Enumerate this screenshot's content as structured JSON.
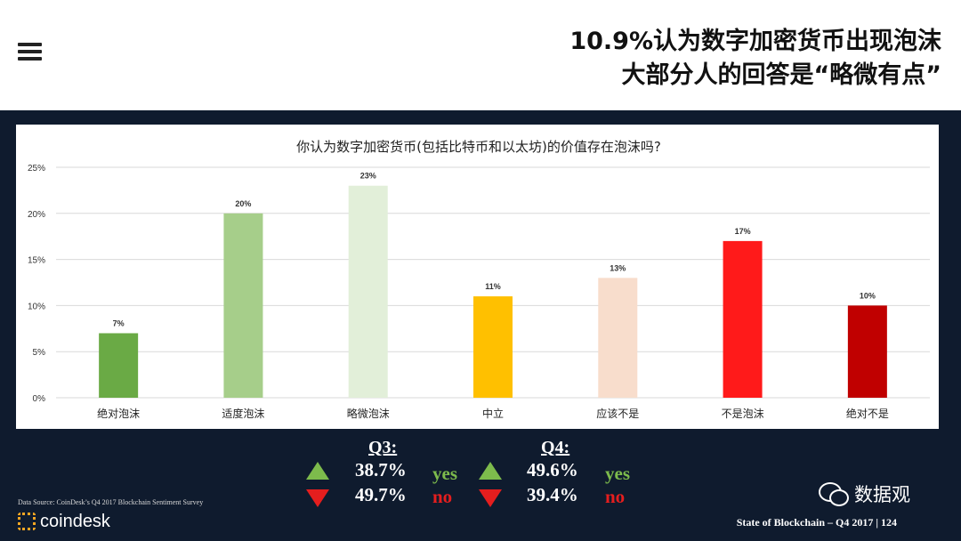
{
  "header": {
    "title_line1": "10.9%认为数字加密货币出现泡沫",
    "title_line2": "大部分人的回答是“略微有点”"
  },
  "chart_data": {
    "type": "bar",
    "title": "你认为数字加密货币(包括比特币和以太坊)的价值存在泡沫吗?",
    "categories": [
      "绝对泡沫",
      "适度泡沫",
      "略微泡沫",
      "中立",
      "应该不是",
      "不是泡沫",
      "绝对不是"
    ],
    "values": [
      7,
      20,
      23,
      11,
      13,
      17,
      10
    ],
    "value_labels": [
      "7%",
      "20%",
      "23%",
      "11%",
      "13%",
      "17%",
      "10%"
    ],
    "colors": [
      "#6aaa45",
      "#a6ce8a",
      "#e2efd9",
      "#ffc000",
      "#f8ddcc",
      "#ff1a1a",
      "#c00000"
    ],
    "yticks": [
      0,
      5,
      10,
      15,
      20,
      25
    ],
    "ytick_labels": [
      "0%",
      "5%",
      "10%",
      "15%",
      "20%",
      "25%"
    ],
    "ylim": [
      0,
      25
    ],
    "grid": true
  },
  "comparison": {
    "q3": {
      "label": "Q3:",
      "yes": "38.7%",
      "no": "49.7%"
    },
    "q4": {
      "label": "Q4:",
      "yes": "49.6%",
      "no": "39.4%"
    },
    "yes_label": "yes",
    "no_label": "no"
  },
  "source": "Data Source: CoinDesk’s Q4 2017 Blockchain Sentiment Survey",
  "logo_text": "coindesk",
  "footer": "State of Blockchain – Q4 2017    |    124",
  "wechat": {
    "name": "数据观"
  }
}
